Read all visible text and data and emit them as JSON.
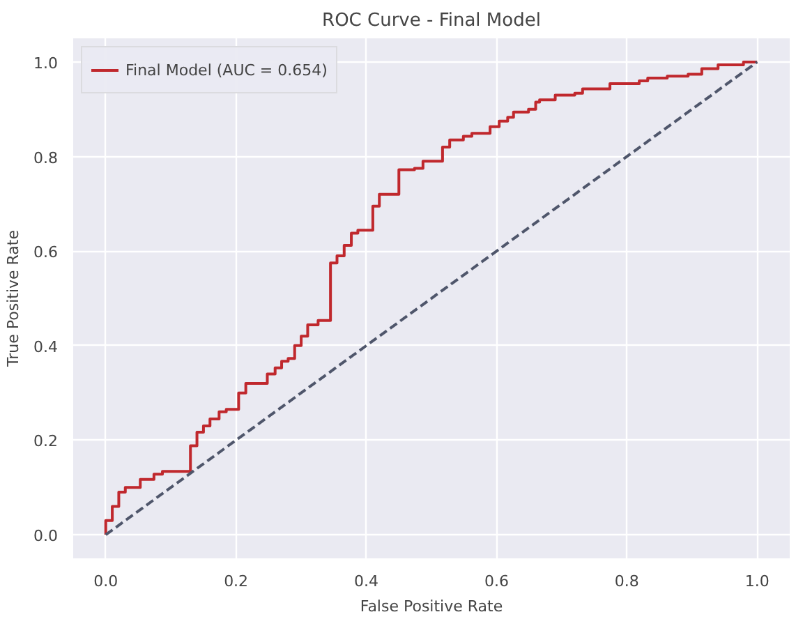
{
  "chart_data": {
    "type": "line",
    "title": "ROC Curve - Final Model",
    "xlabel": "False Positive Rate",
    "ylabel": "True Positive Rate",
    "xlim": [
      -0.05,
      1.05
    ],
    "ylim": [
      -0.05,
      1.05
    ],
    "xticks": [
      {
        "value": 0,
        "label": "0.0"
      },
      {
        "value": 0.2,
        "label": "0.2"
      },
      {
        "value": 0.4,
        "label": "0.4"
      },
      {
        "value": 0.6,
        "label": "0.6"
      },
      {
        "value": 0.8,
        "label": "0.8"
      },
      {
        "value": 1,
        "label": "1.0"
      }
    ],
    "yticks": [
      {
        "value": 0,
        "label": "0.0"
      },
      {
        "value": 0.2,
        "label": "0.2"
      },
      {
        "value": 0.4,
        "label": "0.4"
      },
      {
        "value": 0.6,
        "label": "0.6"
      },
      {
        "value": 0.8,
        "label": "0.8"
      },
      {
        "value": 1,
        "label": "1.0"
      }
    ],
    "grid": true,
    "legend": "top left",
    "marker": "none",
    "series": [
      {
        "name": "Final Model (AUC = 0.654)",
        "color": "#c0282d",
        "line_style": "solid",
        "x": [
          0,
          0,
          0.01,
          0.01,
          0.02,
          0.02,
          0.03,
          0.03,
          0.053,
          0.053,
          0.074,
          0.074,
          0.087,
          0.087,
          0.13,
          0.13,
          0.14,
          0.14,
          0.15,
          0.15,
          0.16,
          0.16,
          0.174,
          0.174,
          0.185,
          0.185,
          0.204,
          0.204,
          0.215,
          0.215,
          0.248,
          0.248,
          0.26,
          0.26,
          0.27,
          0.27,
          0.28,
          0.28,
          0.29,
          0.29,
          0.3,
          0.3,
          0.31,
          0.31,
          0.326,
          0.326,
          0.345,
          0.345,
          0.355,
          0.355,
          0.366,
          0.366,
          0.377,
          0.377,
          0.387,
          0.387,
          0.41,
          0.41,
          0.42,
          0.42,
          0.45,
          0.45,
          0.474,
          0.474,
          0.487,
          0.487,
          0.517,
          0.517,
          0.528,
          0.528,
          0.549,
          0.549,
          0.562,
          0.562,
          0.59,
          0.59,
          0.604,
          0.604,
          0.617,
          0.617,
          0.626,
          0.626,
          0.649,
          0.649,
          0.66,
          0.66,
          0.666,
          0.666,
          0.69,
          0.69,
          0.72,
          0.72,
          0.732,
          0.732,
          0.774,
          0.774,
          0.819,
          0.819,
          0.832,
          0.832,
          0.862,
          0.862,
          0.894,
          0.894,
          0.915,
          0.915,
          0.94,
          0.94,
          0.979,
          0.979,
          1.0
        ],
        "values": [
          0,
          0.03,
          0.03,
          0.06,
          0.06,
          0.09,
          0.09,
          0.1,
          0.1,
          0.117,
          0.117,
          0.128,
          0.128,
          0.134,
          0.134,
          0.188,
          0.188,
          0.217,
          0.217,
          0.23,
          0.23,
          0.245,
          0.245,
          0.26,
          0.26,
          0.265,
          0.265,
          0.3,
          0.3,
          0.32,
          0.32,
          0.34,
          0.34,
          0.353,
          0.353,
          0.367,
          0.367,
          0.373,
          0.373,
          0.4,
          0.4,
          0.42,
          0.42,
          0.444,
          0.444,
          0.453,
          0.453,
          0.575,
          0.575,
          0.59,
          0.59,
          0.612,
          0.612,
          0.638,
          0.638,
          0.644,
          0.644,
          0.695,
          0.695,
          0.72,
          0.72,
          0.772,
          0.772,
          0.775,
          0.775,
          0.79,
          0.79,
          0.82,
          0.82,
          0.835,
          0.835,
          0.843,
          0.843,
          0.849,
          0.849,
          0.863,
          0.863,
          0.875,
          0.875,
          0.883,
          0.883,
          0.894,
          0.894,
          0.9,
          0.9,
          0.915,
          0.915,
          0.92,
          0.92,
          0.93,
          0.93,
          0.934,
          0.934,
          0.943,
          0.943,
          0.954,
          0.954,
          0.96,
          0.96,
          0.966,
          0.966,
          0.97,
          0.97,
          0.974,
          0.974,
          0.986,
          0.986,
          0.994,
          0.994,
          1.0,
          1.0
        ]
      },
      {
        "color": "#4f566b",
        "line_style": "dashed",
        "x": [
          0,
          1
        ],
        "values": [
          0,
          1
        ]
      }
    ]
  }
}
